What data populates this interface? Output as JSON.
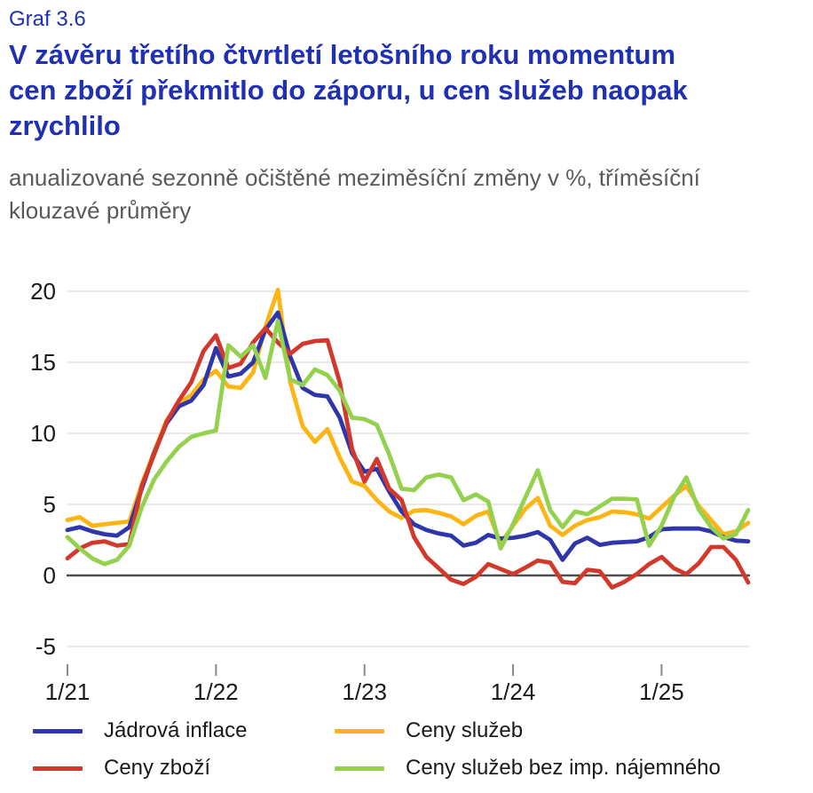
{
  "header": {
    "graf_label": "Graf 3.6",
    "title_lines": [
      "V závěru třetího čtvrtletí letošního roku momentum",
      "cen zboží překmitlo do záporu, u cen služeb naopak",
      "zrychlilo"
    ],
    "subtitle_lines": [
      "anualizované sezonně očištěné meziměsíční změny v %, tříměsíční",
      "klouzavé průměry"
    ]
  },
  "chart_data": {
    "type": "line",
    "x_frequency": "monthly",
    "x_start_label": "1/21",
    "x_end_label": "8/25",
    "x_tick_labels": [
      "1/21",
      "1/22",
      "1/23",
      "1/24",
      "1/25"
    ],
    "x_tick_indices": [
      0,
      12,
      24,
      36,
      48
    ],
    "y_ticks": [
      20,
      15,
      10,
      5,
      0,
      -5
    ],
    "ylim": [
      -5,
      20.5
    ],
    "grid": "horizontal",
    "zero_line": true,
    "colors": {
      "grid": "#e2e2e2",
      "zero_line": "#4d4d4d",
      "tick": "#8a8a8a",
      "axis_text": "#1a1a1a"
    },
    "legend_position": "bottom",
    "series": [
      {
        "name": "Jádrová inflace",
        "color": "#2f36a9",
        "values": [
          3.2,
          3.4,
          3.1,
          2.9,
          2.8,
          3.4,
          6.1,
          8.6,
          10.7,
          11.9,
          12.3,
          13.4,
          16.0,
          14.0,
          14.2,
          15.0,
          17.3,
          18.5,
          15.4,
          13.2,
          12.7,
          12.6,
          11.1,
          8.6,
          7.3,
          7.5,
          5.9,
          4.5,
          3.6,
          3.2,
          2.95,
          2.8,
          2.1,
          2.3,
          2.85,
          2.6,
          2.65,
          2.8,
          3.05,
          2.5,
          1.1,
          2.25,
          2.65,
          2.15,
          2.3,
          2.35,
          2.4,
          2.7,
          3.25,
          3.3,
          3.3,
          3.3,
          3.1,
          2.7,
          2.45,
          2.4
        ]
      },
      {
        "name": "Ceny zboží",
        "color": "#d2392c",
        "values": [
          1.2,
          1.9,
          2.3,
          2.4,
          2.1,
          2.2,
          6.3,
          8.5,
          10.8,
          12.3,
          13.6,
          15.8,
          16.9,
          14.6,
          14.9,
          16.4,
          17.4,
          16.4,
          15.6,
          16.3,
          16.5,
          16.55,
          13.6,
          8.9,
          6.6,
          8.2,
          6.1,
          5.3,
          2.7,
          1.3,
          0.5,
          -0.3,
          -0.6,
          -0.1,
          0.8,
          0.45,
          0.1,
          0.55,
          1.05,
          0.9,
          -0.45,
          -0.55,
          0.4,
          0.3,
          -0.85,
          -0.45,
          0.1,
          0.8,
          1.3,
          0.5,
          0.1,
          0.85,
          2.0,
          2.0,
          1.1,
          -0.5
        ]
      },
      {
        "name": "Ceny služeb",
        "color": "#fdb414",
        "values": [
          3.9,
          4.1,
          3.5,
          3.6,
          3.7,
          3.8,
          6.4,
          8.7,
          10.9,
          12.1,
          12.7,
          13.8,
          14.4,
          13.3,
          13.2,
          14.3,
          17.5,
          20.1,
          13.6,
          10.5,
          9.4,
          10.3,
          8.3,
          6.6,
          6.3,
          5.3,
          4.5,
          4.05,
          4.55,
          4.6,
          4.4,
          4.15,
          3.6,
          4.2,
          4.5,
          2.25,
          3.5,
          4.7,
          5.45,
          3.5,
          2.85,
          3.5,
          3.9,
          4.1,
          4.5,
          4.45,
          4.3,
          4.0,
          4.8,
          5.6,
          6.3,
          4.9,
          3.9,
          2.9,
          3.1,
          3.7
        ]
      },
      {
        "name": "Ceny služeb bez imp. nájemného",
        "color": "#93d14f",
        "values": [
          2.7,
          1.9,
          1.2,
          0.8,
          1.1,
          2.1,
          4.8,
          6.75,
          8.0,
          9.05,
          9.75,
          10.0,
          10.2,
          16.2,
          15.4,
          16.2,
          13.9,
          17.9,
          13.8,
          13.4,
          14.5,
          14.1,
          13.0,
          11.1,
          11.0,
          10.6,
          8.5,
          6.1,
          6.0,
          6.9,
          7.1,
          6.9,
          5.3,
          5.7,
          5.2,
          1.9,
          3.6,
          5.5,
          7.4,
          4.6,
          3.4,
          4.5,
          4.3,
          4.85,
          5.4,
          5.4,
          5.35,
          2.1,
          3.5,
          5.5,
          6.9,
          4.65,
          3.4,
          2.6,
          2.9,
          4.6
        ]
      }
    ]
  }
}
